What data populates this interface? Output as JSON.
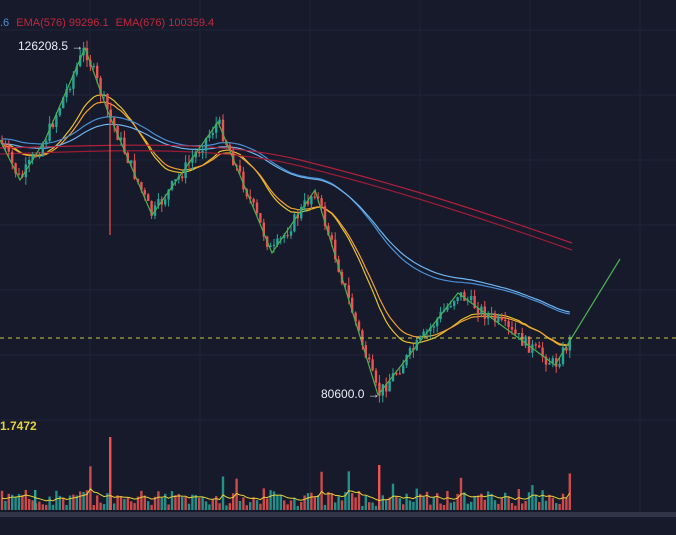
{
  "legend": {
    "ema_prefix": ".6",
    "ema576": "EMA(576) 99296.1",
    "ema676": "EMA(676) 100359.4"
  },
  "volume": {
    "value": "1.7472"
  },
  "annotations": {
    "high_label": "126208.5",
    "low_label": "80600.0",
    "arrow": "→"
  },
  "colors": {
    "background": "#161a2b",
    "up": "#26a69a",
    "down": "#ef5350",
    "ema_yellow": "#e6c229",
    "ema_orange": "#f0a030",
    "ema_blue": "#4a8fd6",
    "ema_lightblue": "#6fb4ee",
    "ema_red": "#b0203a",
    "zigzag": "#4caf50",
    "dashed_line": "#c8c840",
    "volume_ma": "#e6d23a"
  }
}
